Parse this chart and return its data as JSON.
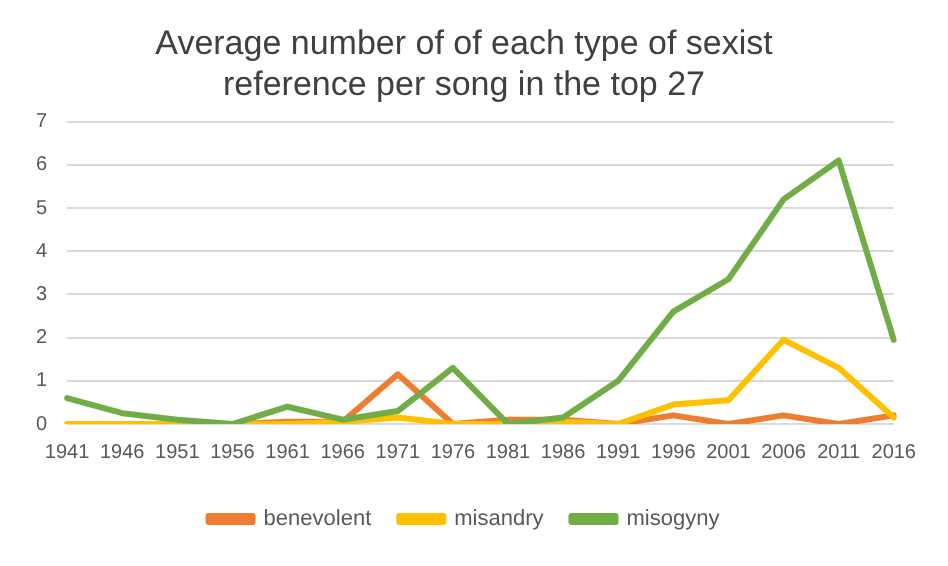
{
  "chart_data": {
    "type": "line",
    "title": [
      "Average number of of each type of sexist",
      "reference per song in the top 27"
    ],
    "categories": [
      "1941",
      "1946",
      "1951",
      "1956",
      "1961",
      "1966",
      "1971",
      "1976",
      "1981",
      "1986",
      "1991",
      "1996",
      "2001",
      "2006",
      "2011",
      "2016"
    ],
    "series": [
      {
        "name": "benevolent",
        "color": "#ed7d31",
        "values": [
          null,
          null,
          0,
          0,
          0.05,
          0.05,
          1.15,
          0,
          0.1,
          0.1,
          0,
          0.2,
          0,
          0.2,
          0,
          0.2
        ]
      },
      {
        "name": "misandry",
        "color": "#ffc000",
        "values": [
          0,
          0,
          0,
          0,
          0,
          0.05,
          0.15,
          0,
          0,
          0.05,
          0,
          0.45,
          0.55,
          1.95,
          1.3,
          0.15
        ]
      },
      {
        "name": "misogyny",
        "color": "#70ad47",
        "values": [
          0.6,
          0.25,
          0.1,
          0,
          0.4,
          0.1,
          0.3,
          1.3,
          0,
          0.15,
          1,
          2.6,
          3.35,
          5.2,
          6.1,
          1.95
        ]
      }
    ],
    "ylim": [
      0,
      7
    ],
    "yticks": [
      0,
      1,
      2,
      3,
      4,
      5,
      6,
      7
    ],
    "grid": "y",
    "legend": "bottom",
    "marker": "none",
    "line_style": "solid"
  }
}
